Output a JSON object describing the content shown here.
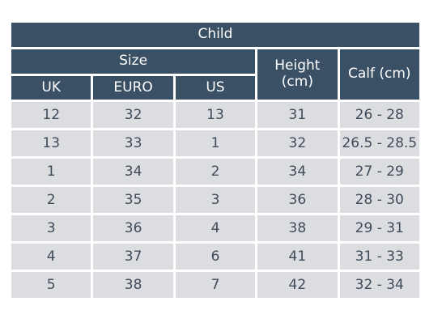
{
  "table": {
    "title": "Child",
    "size_group_label": "Size",
    "columns": {
      "uk": "UK",
      "euro": "EURO",
      "us": "US",
      "height_line1": "Height",
      "height_line2": "(cm)",
      "calf": "Calf (cm)"
    },
    "rows": [
      [
        "12",
        "32",
        "13",
        "31",
        "26 - 28"
      ],
      [
        "13",
        "33",
        "1",
        "32",
        "26.5 - 28.5"
      ],
      [
        "1",
        "34",
        "2",
        "34",
        "27 - 29"
      ],
      [
        "2",
        "35",
        "3",
        "36",
        "28 - 30"
      ],
      [
        "3",
        "36",
        "4",
        "38",
        "29 - 31"
      ],
      [
        "4",
        "37",
        "6",
        "41",
        "31 - 33"
      ],
      [
        "5",
        "38",
        "7",
        "42",
        "32 - 34"
      ]
    ]
  }
}
